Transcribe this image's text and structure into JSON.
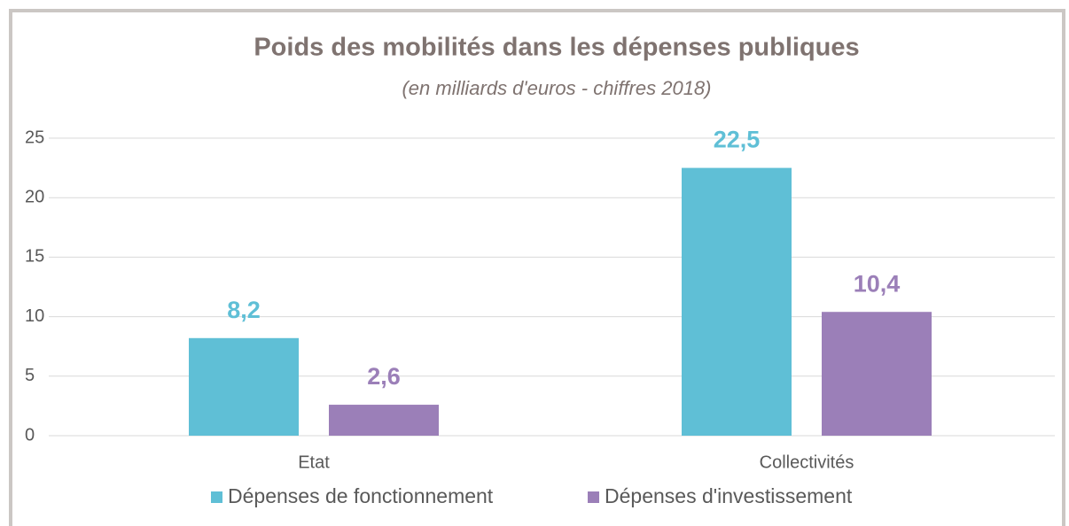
{
  "chart_data": {
    "type": "bar",
    "title": "Poids des mobilités dans les dépenses publiques",
    "subtitle": "(en milliards d'euros - chiffres 2018)",
    "categories": [
      "Etat",
      "Collectivités"
    ],
    "series": [
      {
        "name": "Dépenses de fonctionnement",
        "color": "#5fbfd6",
        "values": [
          8.2,
          22.5
        ],
        "value_labels": [
          "8,2",
          "22,5"
        ]
      },
      {
        "name": "Dépenses d'investissement",
        "color": "#9b7fb8",
        "values": [
          2.6,
          10.4
        ],
        "value_labels": [
          "2,6",
          "10,4"
        ]
      }
    ],
    "ylim": [
      0,
      25
    ],
    "yticks": [
      0,
      5,
      10,
      15,
      20,
      25
    ],
    "grid": true,
    "legend": "bottom"
  }
}
